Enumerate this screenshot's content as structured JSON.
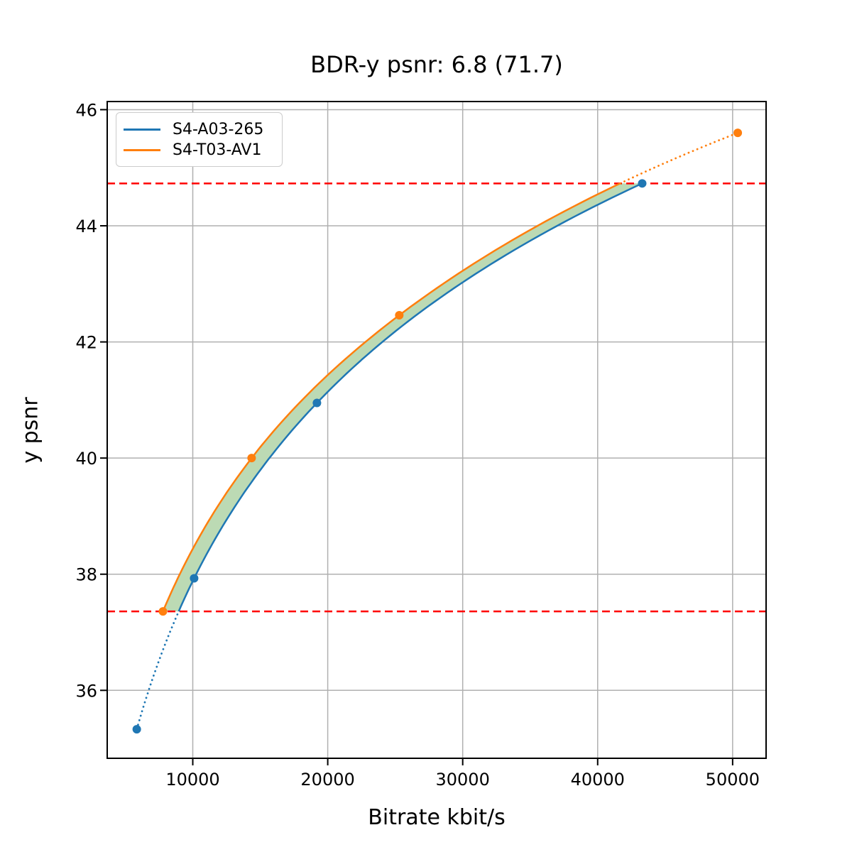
{
  "chart_data": {
    "type": "line",
    "title": "BDR-y psnr: 6.8 (71.7)",
    "xlabel": "Bitrate kbit/s",
    "ylabel": "y psnr",
    "xlim": [
      3660,
      52480
    ],
    "ylim": [
      34.83,
      46.14
    ],
    "xticks": [
      10000,
      20000,
      30000,
      40000,
      50000
    ],
    "yticks": [
      36,
      38,
      40,
      42,
      44,
      46
    ],
    "grid": true,
    "legend_position": "upper-left",
    "series": [
      {
        "name": "S4-A03-265",
        "color": "#1f77b4",
        "marker": "circle",
        "points": [
          [
            5850,
            35.33
          ],
          [
            10100,
            37.93
          ],
          [
            19200,
            40.95
          ],
          [
            43300,
            44.73
          ]
        ]
      },
      {
        "name": "S4-T03-AV1",
        "color": "#ff7f0e",
        "marker": "circle",
        "points": [
          [
            7790,
            37.36
          ],
          [
            14360,
            40.0
          ],
          [
            25300,
            42.46
          ],
          [
            50380,
            45.6
          ]
        ]
      }
    ],
    "reference_lines": {
      "color": "#ff0000",
      "style": "dashed",
      "values": [
        37.36,
        44.73
      ]
    },
    "fill_between": {
      "color": "#bcdab4",
      "y_range": [
        37.36,
        44.73
      ]
    },
    "colors": {
      "grid": "#b0b0b0",
      "spine": "#000000",
      "background": "#ffffff"
    }
  }
}
